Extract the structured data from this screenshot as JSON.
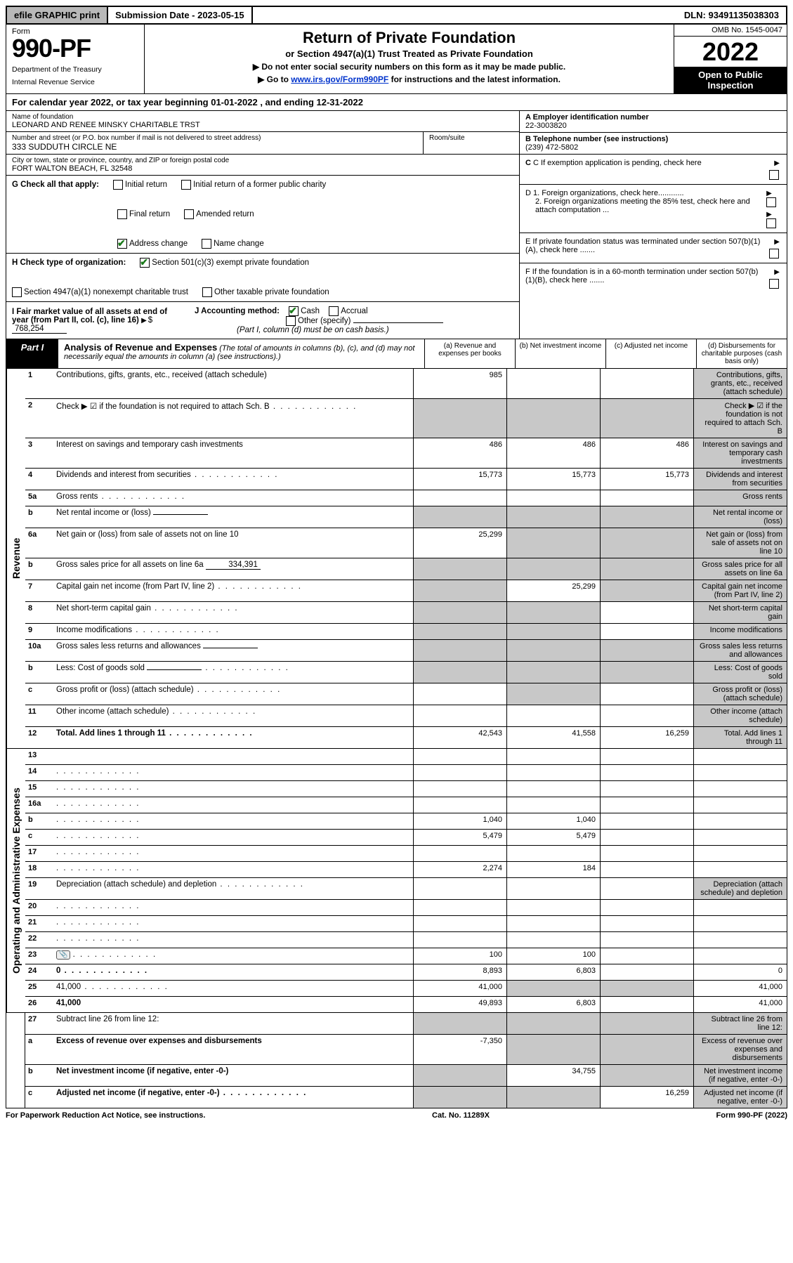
{
  "topbar": {
    "efile": "efile GRAPHIC print",
    "submission": "Submission Date - 2023-05-15",
    "dln": "DLN: 93491135038303"
  },
  "header": {
    "form_label": "Form",
    "form_no": "990-PF",
    "dept1": "Department of the Treasury",
    "dept2": "Internal Revenue Service",
    "title1": "Return of Private Foundation",
    "title2": "or Section 4947(a)(1) Trust Treated as Private Foundation",
    "title3": "▶ Do not enter social security numbers on this form as it may be made public.",
    "title4_pre": "▶ Go to ",
    "title4_link": "www.irs.gov/Form990PF",
    "title4_post": " for instructions and the latest information.",
    "omb": "OMB No. 1545-0047",
    "year": "2022",
    "open": "Open to Public Inspection"
  },
  "calyear": "For calendar year 2022, or tax year beginning 01-01-2022                           , and ending 12-31-2022",
  "entity": {
    "name_label": "Name of foundation",
    "name": "LEONARD AND RENEE MINSKY CHARITABLE TRST",
    "addr_label": "Number and street (or P.O. box number if mail is not delivered to street address)",
    "addr": "333 SUDDUTH CIRCLE NE",
    "room_label": "Room/suite",
    "city_label": "City or town, state or province, country, and ZIP or foreign postal code",
    "city": "FORT WALTON BEACH, FL  32548",
    "ein_label": "A Employer identification number",
    "ein": "22-3003820",
    "phone_label": "B Telephone number (see instructions)",
    "phone": "(239) 472-5802",
    "c_label": "C If exemption application is pending, check here",
    "d1": "D 1. Foreign organizations, check here............",
    "d2": "2. Foreign organizations meeting the 85% test, check here and attach computation ...",
    "e": "E  If private foundation status was terminated under section 507(b)(1)(A), check here .......",
    "f": "F  If the foundation is in a 60-month termination under section 507(b)(1)(B), check here .......",
    "g_label": "G Check all that apply:",
    "g_opts": [
      "Initial return",
      "Initial return of a former public charity",
      "Final return",
      "Amended return",
      "Address change",
      "Name change"
    ],
    "h_label": "H Check type of organization:",
    "h_opts": [
      "Section 501(c)(3) exempt private foundation",
      "Section 4947(a)(1) nonexempt charitable trust",
      "Other taxable private foundation"
    ],
    "i_label": "I Fair market value of all assets at end of year (from Part II, col. (c), line 16)",
    "i_value": "768,254",
    "j_label": "J Accounting method:",
    "j_opts": [
      "Cash",
      "Accrual",
      "Other (specify)"
    ],
    "j_note": "(Part I, column (d) must be on cash basis.)"
  },
  "part1": {
    "label": "Part I",
    "title": "Analysis of Revenue and Expenses",
    "subtitle": "(The total of amounts in columns (b), (c), and (d) may not necessarily equal the amounts in column (a) (see instructions).)",
    "col_a": "(a)   Revenue and expenses per books",
    "col_b": "(b)   Net investment income",
    "col_c": "(c)   Adjusted net income",
    "col_d": "(d)   Disbursements for charitable purposes (cash basis only)"
  },
  "sections": {
    "revenue": "Revenue",
    "expenses": "Operating and Administrative Expenses"
  },
  "rows": [
    {
      "n": "1",
      "d": "Contributions, gifts, grants, etc., received (attach schedule)",
      "a": "985",
      "b": "",
      "c": "",
      "d_sh": true
    },
    {
      "n": "2",
      "d": "Check ▶ ☑ if the foundation is not required to attach Sch. B",
      "dots": true,
      "a_sh": true,
      "b_sh": true,
      "c_sh": true,
      "d_sh": true
    },
    {
      "n": "3",
      "d": "Interest on savings and temporary cash investments",
      "a": "486",
      "b": "486",
      "c": "486",
      "d_sh": true
    },
    {
      "n": "4",
      "d": "Dividends and interest from securities",
      "dots": true,
      "a": "15,773",
      "b": "15,773",
      "c": "15,773",
      "d_sh": true
    },
    {
      "n": "5a",
      "d": "Gross rents",
      "dots": true,
      "a": "",
      "b": "",
      "c": "",
      "d_sh": true
    },
    {
      "n": "b",
      "d": "Net rental income or (loss)",
      "inline": "",
      "a_sh": true,
      "b_sh": true,
      "c_sh": true,
      "d_sh": true
    },
    {
      "n": "6a",
      "d": "Net gain or (loss) from sale of assets not on line 10",
      "a": "25,299",
      "b_sh": true,
      "c_sh": true,
      "d_sh": true
    },
    {
      "n": "b",
      "d": "Gross sales price for all assets on line 6a",
      "inline": "334,391",
      "a_sh": true,
      "b_sh": true,
      "c_sh": true,
      "d_sh": true
    },
    {
      "n": "7",
      "d": "Capital gain net income (from Part IV, line 2)",
      "dots": true,
      "a_sh": true,
      "b": "25,299",
      "c_sh": true,
      "d_sh": true
    },
    {
      "n": "8",
      "d": "Net short-term capital gain",
      "dots": true,
      "a_sh": true,
      "b_sh": true,
      "c": "",
      "d_sh": true
    },
    {
      "n": "9",
      "d": "Income modifications",
      "dots": true,
      "a_sh": true,
      "b_sh": true,
      "c": "",
      "d_sh": true
    },
    {
      "n": "10a",
      "d": "Gross sales less returns and allowances",
      "inline": "",
      "a_sh": true,
      "b_sh": true,
      "c_sh": true,
      "d_sh": true
    },
    {
      "n": "b",
      "d": "Less: Cost of goods sold",
      "dots": true,
      "inline": "",
      "a_sh": true,
      "b_sh": true,
      "c_sh": true,
      "d_sh": true
    },
    {
      "n": "c",
      "d": "Gross profit or (loss) (attach schedule)",
      "dots": true,
      "a": "",
      "b_sh": true,
      "c": "",
      "d_sh": true
    },
    {
      "n": "11",
      "d": "Other income (attach schedule)",
      "dots": true,
      "a": "",
      "b": "",
      "c": "",
      "d_sh": true
    },
    {
      "n": "12",
      "d": "Total. Add lines 1 through 11",
      "bold": true,
      "dots": true,
      "a": "42,543",
      "b": "41,558",
      "c": "16,259",
      "d_sh": true
    }
  ],
  "exp_rows": [
    {
      "n": "13",
      "d": "",
      "a": "",
      "b": "",
      "c": ""
    },
    {
      "n": "14",
      "d": "",
      "dots": true,
      "a": "",
      "b": "",
      "c": ""
    },
    {
      "n": "15",
      "d": "",
      "dots": true,
      "a": "",
      "b": "",
      "c": ""
    },
    {
      "n": "16a",
      "d": "",
      "dots": true,
      "a": "",
      "b": "",
      "c": ""
    },
    {
      "n": "b",
      "d": "",
      "dots": true,
      "a": "1,040",
      "b": "1,040",
      "c": ""
    },
    {
      "n": "c",
      "d": "",
      "dots": true,
      "a": "5,479",
      "b": "5,479",
      "c": ""
    },
    {
      "n": "17",
      "d": "",
      "dots": true,
      "a": "",
      "b": "",
      "c": ""
    },
    {
      "n": "18",
      "d": "",
      "dots": true,
      "a": "2,274",
      "b": "184",
      "c": ""
    },
    {
      "n": "19",
      "d": "Depreciation (attach schedule) and depletion",
      "dots": true,
      "a": "",
      "b": "",
      "c": "",
      "d_sh": true
    },
    {
      "n": "20",
      "d": "",
      "dots": true,
      "a": "",
      "b": "",
      "c": ""
    },
    {
      "n": "21",
      "d": "",
      "dots": true,
      "a": "",
      "b": "",
      "c": ""
    },
    {
      "n": "22",
      "d": "",
      "dots": true,
      "a": "",
      "b": "",
      "c": ""
    },
    {
      "n": "23",
      "d": "",
      "dots": true,
      "icon": true,
      "a": "100",
      "b": "100",
      "c": ""
    },
    {
      "n": "24",
      "d": "0",
      "bold": true,
      "dots": true,
      "a": "8,893",
      "b": "6,803",
      "c": ""
    },
    {
      "n": "25",
      "d": "41,000",
      "dots": true,
      "a": "41,000",
      "b_sh": true,
      "c_sh": true
    },
    {
      "n": "26",
      "d": "41,000",
      "bold": true,
      "a": "49,893",
      "b": "6,803",
      "c": ""
    }
  ],
  "bottom_rows": [
    {
      "n": "27",
      "d": "Subtract line 26 from line 12:",
      "a_sh": true,
      "b_sh": true,
      "c_sh": true,
      "d_sh": true
    },
    {
      "n": "a",
      "d": "Excess of revenue over expenses and disbursements",
      "bold": true,
      "a": "-7,350",
      "b_sh": true,
      "c_sh": true,
      "d_sh": true
    },
    {
      "n": "b",
      "d": "Net investment income (if negative, enter -0-)",
      "bold": true,
      "a_sh": true,
      "b": "34,755",
      "c_sh": true,
      "d_sh": true
    },
    {
      "n": "c",
      "d": "Adjusted net income (if negative, enter -0-)",
      "bold": true,
      "dots": true,
      "a_sh": true,
      "b_sh": true,
      "c": "16,259",
      "d_sh": true
    }
  ],
  "footer": {
    "left": "For Paperwork Reduction Act Notice, see instructions.",
    "mid": "Cat. No. 11289X",
    "right": "Form 990-PF (2022)"
  }
}
